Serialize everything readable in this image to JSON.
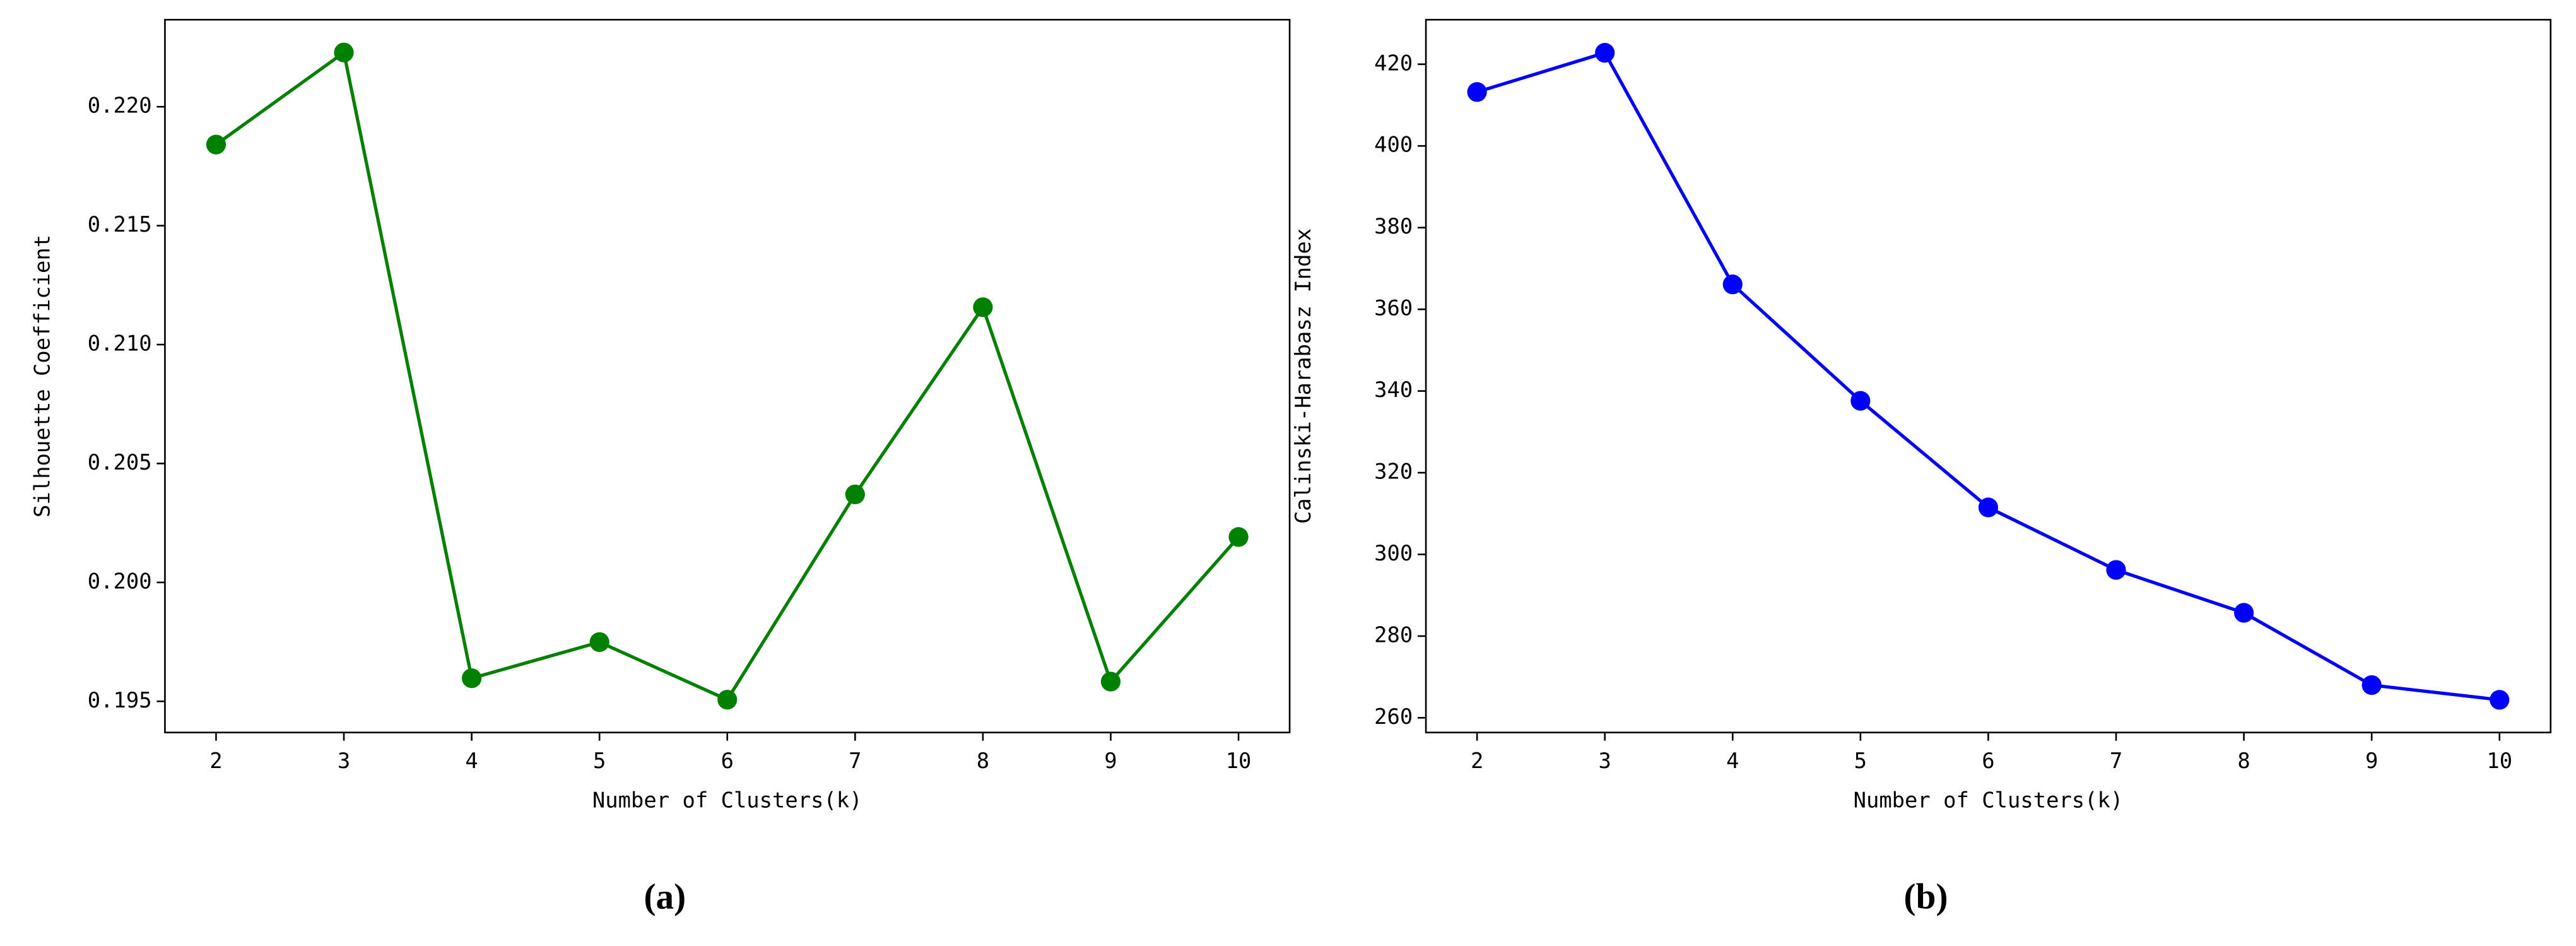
{
  "chart_data": [
    {
      "type": "line",
      "caption": "(a)",
      "xlabel": "Number of Clusters(k)",
      "ylabel": "Silhouette Coefficient",
      "x": [
        2,
        3,
        4,
        5,
        6,
        7,
        8,
        9,
        10
      ],
      "values": [
        0.21841,
        0.22228,
        0.19597,
        0.19749,
        0.19507,
        0.2037,
        0.21157,
        0.19583,
        0.20191
      ],
      "color": "#008000",
      "xlim": [
        1.6,
        10.4
      ],
      "xticks": [
        2,
        3,
        4,
        5,
        6,
        7,
        8,
        9,
        10
      ],
      "ylim": [
        0.19369,
        0.22366
      ],
      "yticks": [
        0.195,
        {
          "value": 0.2,
          "label": "0.200"
        },
        0.205,
        {
          "value": 0.21,
          "label": "0.210"
        },
        0.215,
        {
          "value": 0.22,
          "label": "0.220"
        }
      ]
    },
    {
      "type": "line",
      "caption": "(b)",
      "xlabel": "Number of Clusters(k)",
      "ylabel": "Calinski-Harabasz Index",
      "x": [
        2,
        3,
        4,
        5,
        6,
        7,
        8,
        9,
        10
      ],
      "values": [
        413.2,
        422.8,
        366.1,
        337.6,
        311.5,
        296.2,
        285.7,
        268,
        264.4
      ],
      "color": "#0000ff",
      "xlim": [
        1.6,
        10.4
      ],
      "xticks": [
        2,
        3,
        4,
        5,
        6,
        7,
        8,
        9,
        10
      ],
      "ylim": [
        256.4,
        430.9
      ],
      "yticks": [
        260,
        280,
        300,
        320,
        340,
        360,
        380,
        400,
        420
      ]
    }
  ]
}
